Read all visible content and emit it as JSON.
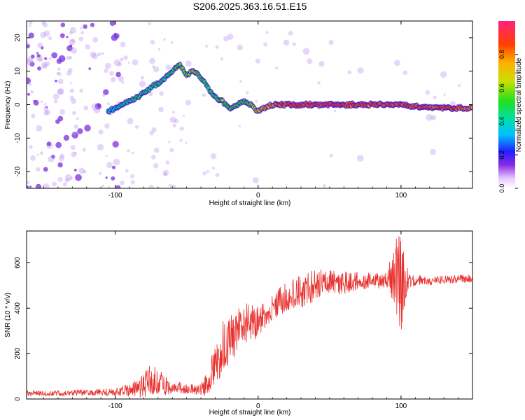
{
  "title": "S206.2025.363.16.51.E15",
  "colors": {
    "snr_line": "#e8312f",
    "track_core": "#e0204a",
    "scatter": "#8a3cff"
  },
  "chart_data": [
    {
      "type": "heatmap",
      "xlabel": "Height of straight line (km)",
      "ylabel": "Frequency (Hz)",
      "xlim": [
        -162,
        150
      ],
      "ylim": [
        -25,
        25
      ],
      "xticks": [
        -100,
        0,
        100
      ],
      "xtick_labels": [
        "-100",
        "0",
        "100"
      ],
      "yticks": [
        -20,
        -10,
        0,
        10,
        20
      ],
      "ytick_labels": [
        "-20",
        "-10",
        "0",
        "10",
        "20"
      ],
      "track": {
        "x": [
          -105,
          -95,
          -85,
          -75,
          -65,
          -55,
          -50,
          -45,
          -40,
          -35,
          -30,
          -25,
          -20,
          -15,
          -10,
          -5,
          0,
          5,
          10,
          20,
          40,
          60,
          80,
          100,
          120,
          150
        ],
        "y": [
          -2,
          0,
          2,
          5,
          8,
          12,
          9,
          10,
          8,
          5,
          2,
          1,
          -1,
          0,
          1,
          0,
          -2,
          -1,
          0,
          0,
          0,
          0,
          0,
          0,
          -1,
          -1
        ],
        "amplitude": [
          0.4,
          0.45,
          0.5,
          0.5,
          0.5,
          0.55,
          0.6,
          0.65,
          0.55,
          0.5,
          0.55,
          0.6,
          0.55,
          0.6,
          0.55,
          0.6,
          0.75,
          0.8,
          0.85,
          0.95,
          0.95,
          0.95,
          0.92,
          0.95,
          0.9,
          0.9
        ]
      },
      "colorbar": {
        "label": "Normalized spectral amplitude",
        "range": [
          0,
          1
        ],
        "ticks": [
          0.0,
          0.2,
          0.4,
          0.6,
          0.8
        ],
        "tick_labels": [
          "0.0",
          "0.2",
          "0.4",
          "0.6",
          "0.8"
        ]
      }
    },
    {
      "type": "line",
      "xlabel": "Height of straight line (km)",
      "ylabel": "SNR (10 * v/v)",
      "xlim": [
        -162,
        150
      ],
      "ylim": [
        0,
        740
      ],
      "xticks": [
        -100,
        0,
        100
      ],
      "xtick_labels": [
        "-100",
        "0",
        "100"
      ],
      "yticks": [
        0,
        200,
        400,
        600
      ],
      "ytick_labels": [
        "0",
        "200",
        "400",
        "600"
      ],
      "series": [
        {
          "name": "SNR",
          "x": [
            -162,
            -140,
            -120,
            -100,
            -90,
            -80,
            -75,
            -70,
            -65,
            -60,
            -50,
            -40,
            -35,
            -30,
            -25,
            -20,
            -15,
            -10,
            -5,
            0,
            5,
            10,
            15,
            20,
            25,
            30,
            40,
            50,
            60,
            70,
            80,
            90,
            95,
            98,
            100,
            102,
            105,
            110,
            120,
            130,
            140,
            150
          ],
          "y": [
            25,
            25,
            28,
            32,
            40,
            60,
            90,
            80,
            60,
            55,
            45,
            40,
            80,
            150,
            220,
            260,
            300,
            340,
            330,
            340,
            370,
            400,
            430,
            450,
            470,
            480,
            500,
            520,
            510,
            520,
            520,
            520,
            550,
            520,
            500,
            540,
            520,
            525,
            520,
            525,
            530,
            530
          ],
          "noise": [
            12,
            12,
            14,
            18,
            30,
            55,
            70,
            60,
            45,
            30,
            22,
            25,
            60,
            90,
            120,
            110,
            100,
            90,
            85,
            70,
            60,
            60,
            60,
            70,
            75,
            80,
            70,
            60,
            55,
            40,
            35,
            40,
            150,
            200,
            220,
            150,
            40,
            25,
            20,
            18,
            18,
            18
          ]
        }
      ]
    }
  ]
}
